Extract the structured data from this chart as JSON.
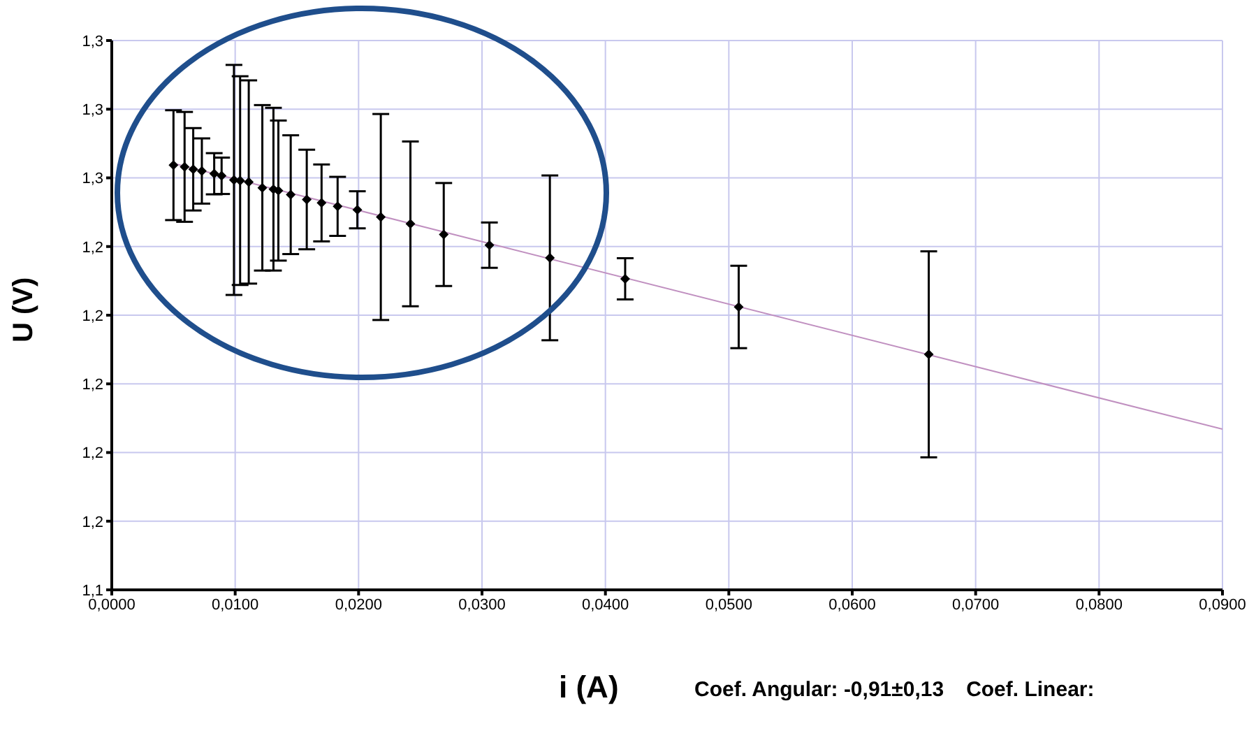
{
  "chart_data": {
    "type": "scatter",
    "xlabel": "i (A)",
    "ylabel": "U (V)",
    "annotations": [
      "Coef. Angular: -0,91±0,13",
      "Coef. Linear:"
    ],
    "xlim": [
      0,
      0.09
    ],
    "ylim": [
      1.14,
      1.3
    ],
    "xticks": [
      {
        "value": 0,
        "label": "0,0000"
      },
      {
        "value": 0.01,
        "label": "0,0100"
      },
      {
        "value": 0.02,
        "label": "0,0200"
      },
      {
        "value": 0.03,
        "label": "0,0300"
      },
      {
        "value": 0.04,
        "label": "0,0400"
      },
      {
        "value": 0.05,
        "label": "0,0500"
      },
      {
        "value": 0.06,
        "label": "0,0600"
      },
      {
        "value": 0.07,
        "label": "0,0700"
      },
      {
        "value": 0.08,
        "label": "0,0800"
      },
      {
        "value": 0.09,
        "label": "0,0900"
      }
    ],
    "yticks": [
      {
        "value": 1.14,
        "label": "1,1"
      },
      {
        "value": 1.16,
        "label": "1,2"
      },
      {
        "value": 1.18,
        "label": "1,2"
      },
      {
        "value": 1.2,
        "label": "1,2"
      },
      {
        "value": 1.22,
        "label": "1,2"
      },
      {
        "value": 1.24,
        "label": "1,2"
      },
      {
        "value": 1.26,
        "label": "1,3"
      },
      {
        "value": 1.28,
        "label": "1,3"
      },
      {
        "value": 1.3,
        "label": "1,3"
      }
    ],
    "grid": true,
    "legend": false,
    "marker": "diamond",
    "series": [
      {
        "color": "#000000",
        "x": [
          0.005,
          0.0059,
          0.0066,
          0.0073,
          0.0083,
          0.0089,
          0.0099,
          0.0104,
          0.0111,
          0.0122,
          0.0131,
          0.0135,
          0.0145,
          0.0158,
          0.017,
          0.0183,
          0.0199,
          0.0218,
          0.0242,
          0.0269,
          0.0306,
          0.0355,
          0.0416,
          0.0508,
          0.0662
        ],
        "values": [
          1.2637,
          1.2632,
          1.2625,
          1.262,
          1.2612,
          1.2606,
          1.2594,
          1.2592,
          1.2588,
          1.2571,
          1.2567,
          1.2563,
          1.2551,
          1.2537,
          1.2527,
          1.2517,
          1.2507,
          1.2486,
          1.2466,
          1.2435,
          1.2404,
          1.2367,
          1.2306,
          1.2224,
          1.2086
        ],
        "errors": [
          0.016,
          0.016,
          0.012,
          0.0095,
          0.006,
          0.0053,
          0.0335,
          0.0304,
          0.0296,
          0.0241,
          0.0237,
          0.0204,
          0.0173,
          0.0145,
          0.0112,
          0.0086,
          0.0054,
          0.03,
          0.024,
          0.015,
          0.0066,
          0.024,
          0.006,
          0.012,
          0.03
        ]
      },
      {
        "type": "line",
        "color": "#c090c0",
        "marker": "none",
        "line_style": "solid",
        "x": [
          0.005,
          0.09
        ],
        "values": [
          1.2642,
          1.1868
        ]
      }
    ]
  }
}
